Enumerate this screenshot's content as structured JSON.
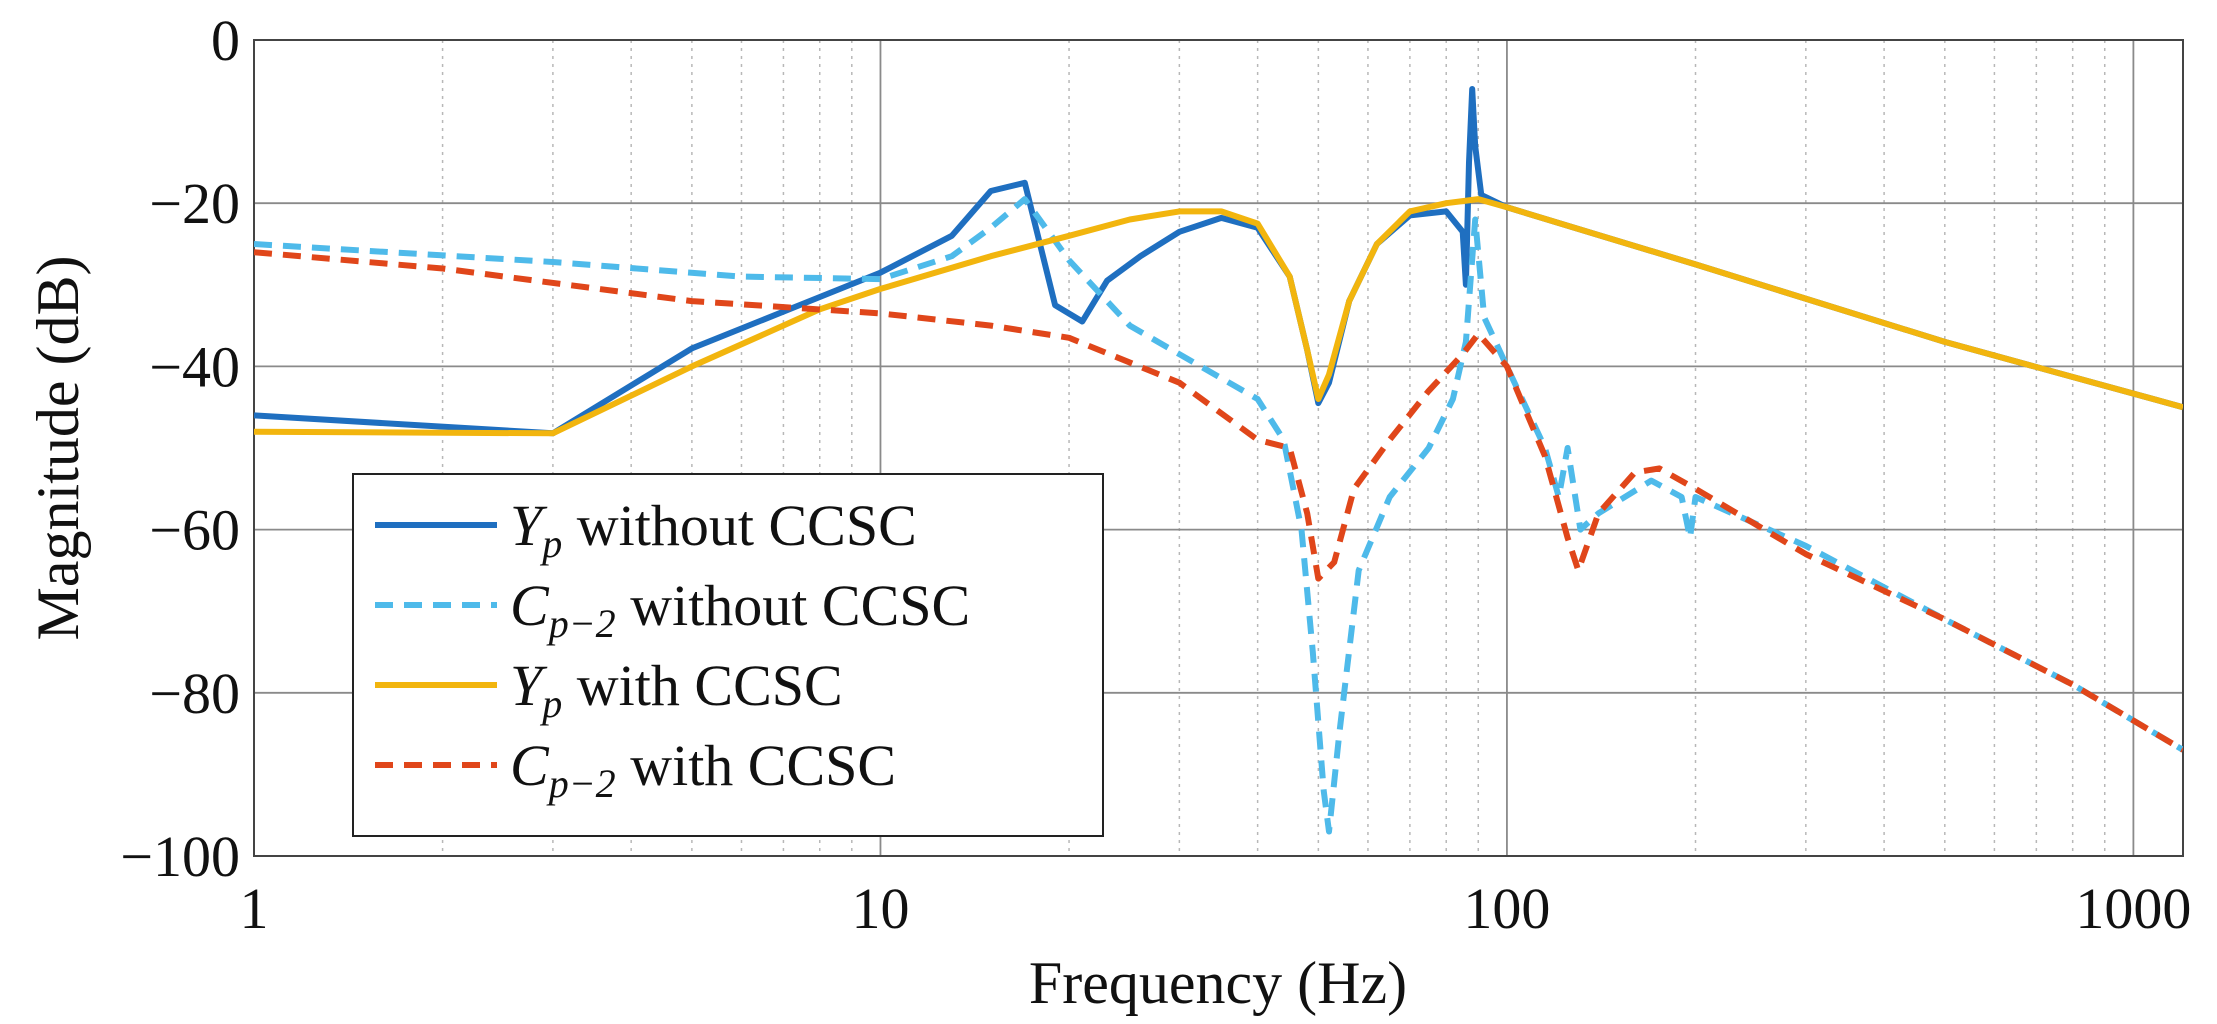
{
  "chart_data": {
    "type": "line",
    "xlabel": "Frequency (Hz)",
    "ylabel": "Magnitude (dB)",
    "xscale": "log",
    "xlim": [
      1,
      1200
    ],
    "ylim": [
      -100,
      0
    ],
    "xticks": [
      1,
      10,
      100,
      1000
    ],
    "xtick_labels": [
      "1",
      "10",
      "100",
      "1000"
    ],
    "yticks": [
      0,
      -20,
      -40,
      -60,
      -80,
      -100
    ],
    "ytick_labels": [
      "0",
      "−20",
      "−40",
      "−60",
      "−80",
      "−100"
    ],
    "grid": true,
    "legend_position": "bottom-left",
    "series": [
      {
        "name": "Y_p without CCSC",
        "legend_main": "Y",
        "legend_sub": "p",
        "legend_rest": " without CCSC",
        "color": "#1f6fc0",
        "dash": "solid",
        "points": [
          [
            1,
            -46
          ],
          [
            3,
            -48.2
          ],
          [
            5,
            -37.8
          ],
          [
            8,
            -31.5
          ],
          [
            10,
            -28.5
          ],
          [
            13,
            -24
          ],
          [
            15,
            -18.5
          ],
          [
            17,
            -17.5
          ],
          [
            19,
            -32.5
          ],
          [
            21,
            -34.5
          ],
          [
            23,
            -29.5
          ],
          [
            26,
            -26.5
          ],
          [
            30,
            -23.5
          ],
          [
            35,
            -21.8
          ],
          [
            40,
            -23
          ],
          [
            45,
            -29
          ],
          [
            48,
            -38
          ],
          [
            50,
            -44.5
          ],
          [
            52,
            -42
          ],
          [
            56,
            -32
          ],
          [
            62,
            -25
          ],
          [
            70,
            -21.5
          ],
          [
            80,
            -21
          ],
          [
            85,
            -23.5
          ],
          [
            86,
            -30
          ],
          [
            87,
            -15
          ],
          [
            88,
            -6
          ],
          [
            89,
            -13
          ],
          [
            91,
            -19
          ],
          [
            100,
            -20.5
          ],
          [
            200,
            -27.5
          ],
          [
            500,
            -37
          ],
          [
            1200,
            -45
          ]
        ]
      },
      {
        "name": "C_p−2 without CCSC",
        "legend_main": "C",
        "legend_sub": "p−2",
        "legend_rest": " without CCSC",
        "color": "#4ebaea",
        "dash": "dashed",
        "points": [
          [
            1,
            -25
          ],
          [
            3,
            -27.2
          ],
          [
            6,
            -29
          ],
          [
            10,
            -29.3
          ],
          [
            13,
            -26.5
          ],
          [
            15,
            -23
          ],
          [
            17,
            -19.5
          ],
          [
            20,
            -27
          ],
          [
            25,
            -35
          ],
          [
            30,
            -38.5
          ],
          [
            40,
            -44
          ],
          [
            44,
            -49
          ],
          [
            47,
            -60
          ],
          [
            49,
            -75
          ],
          [
            51,
            -92
          ],
          [
            52,
            -97
          ],
          [
            54,
            -85
          ],
          [
            58,
            -65
          ],
          [
            65,
            -56
          ],
          [
            75,
            -50
          ],
          [
            82,
            -44
          ],
          [
            86,
            -37
          ],
          [
            89,
            -22
          ],
          [
            92,
            -34
          ],
          [
            100,
            -40
          ],
          [
            115,
            -50
          ],
          [
            121,
            -56
          ],
          [
            125,
            -50
          ],
          [
            131,
            -60
          ],
          [
            140,
            -58
          ],
          [
            170,
            -54
          ],
          [
            190,
            -56
          ],
          [
            196,
            -61
          ],
          [
            200,
            -56
          ],
          [
            300,
            -62
          ],
          [
            500,
            -71
          ],
          [
            800,
            -79
          ],
          [
            1200,
            -87
          ]
        ]
      },
      {
        "name": "Y_p with CCSC",
        "legend_main": "Y",
        "legend_sub": "p",
        "legend_rest": "  with CCSC",
        "color": "#f2b50e",
        "dash": "solid",
        "points": [
          [
            1,
            -48
          ],
          [
            3,
            -48.2
          ],
          [
            5,
            -40
          ],
          [
            8,
            -33
          ],
          [
            10,
            -30.5
          ],
          [
            15,
            -26.5
          ],
          [
            20,
            -24
          ],
          [
            25,
            -22
          ],
          [
            30,
            -21
          ],
          [
            35,
            -21
          ],
          [
            40,
            -22.5
          ],
          [
            45,
            -29
          ],
          [
            48,
            -38
          ],
          [
            50,
            -44
          ],
          [
            52,
            -41
          ],
          [
            56,
            -32
          ],
          [
            62,
            -25
          ],
          [
            70,
            -21
          ],
          [
            80,
            -20
          ],
          [
            90,
            -19.5
          ],
          [
            100,
            -20.5
          ],
          [
            200,
            -27.5
          ],
          [
            500,
            -37
          ],
          [
            1200,
            -45
          ]
        ]
      },
      {
        "name": "C_p−2 with CCSC",
        "legend_main": "C",
        "legend_sub": "p−2",
        "legend_rest": " with CCSC",
        "color": "#e0461a",
        "dash": "dashed",
        "points": [
          [
            1,
            -26
          ],
          [
            2,
            -28
          ],
          [
            5,
            -32
          ],
          [
            10,
            -33.5
          ],
          [
            15,
            -35
          ],
          [
            20,
            -36.5
          ],
          [
            30,
            -42
          ],
          [
            40,
            -49
          ],
          [
            45,
            -50
          ],
          [
            48,
            -58
          ],
          [
            50,
            -66
          ],
          [
            53,
            -64
          ],
          [
            57,
            -55
          ],
          [
            65,
            -49
          ],
          [
            75,
            -43
          ],
          [
            85,
            -38.5
          ],
          [
            90,
            -36
          ],
          [
            100,
            -40
          ],
          [
            115,
            -51
          ],
          [
            125,
            -61
          ],
          [
            130,
            -65
          ],
          [
            140,
            -58
          ],
          [
            160,
            -53
          ],
          [
            175,
            -52.5
          ],
          [
            200,
            -55
          ],
          [
            300,
            -63
          ],
          [
            500,
            -71
          ],
          [
            800,
            -79
          ],
          [
            1200,
            -87
          ]
        ]
      }
    ]
  }
}
